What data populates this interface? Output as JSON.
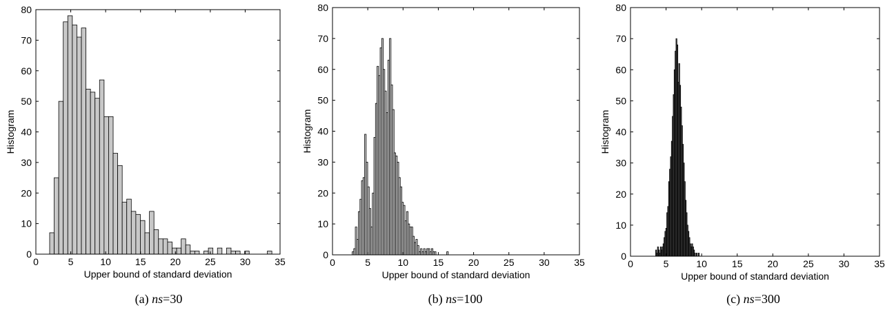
{
  "chart_data": [
    {
      "type": "bar",
      "panel_id": "a",
      "caption_prefix": "(a) ",
      "caption_var": "ns",
      "caption_value": "=30",
      "xlabel": "Upper bound of standard deviation",
      "ylabel": "Histogram",
      "xlim": [
        0,
        35
      ],
      "ylim": [
        0,
        80
      ],
      "xticks": [
        0,
        5,
        10,
        15,
        20,
        25,
        30,
        35
      ],
      "yticks": [
        0,
        10,
        20,
        30,
        40,
        50,
        60,
        70,
        80
      ],
      "bar_color": "#c8c8c8",
      "bin_width": 0.65,
      "bins": [
        [
          2.3,
          7
        ],
        [
          2.95,
          25
        ],
        [
          3.6,
          50
        ],
        [
          4.25,
          76
        ],
        [
          4.9,
          78
        ],
        [
          5.55,
          75
        ],
        [
          6.2,
          71
        ],
        [
          6.85,
          74
        ],
        [
          7.5,
          54
        ],
        [
          8.15,
          53
        ],
        [
          8.8,
          51
        ],
        [
          9.45,
          57
        ],
        [
          10.1,
          45
        ],
        [
          10.75,
          45
        ],
        [
          11.4,
          33
        ],
        [
          12.05,
          29
        ],
        [
          12.7,
          17
        ],
        [
          13.35,
          18
        ],
        [
          14.0,
          14
        ],
        [
          14.65,
          13
        ],
        [
          15.3,
          11
        ],
        [
          15.95,
          7
        ],
        [
          16.6,
          14
        ],
        [
          17.25,
          8
        ],
        [
          17.9,
          5
        ],
        [
          18.55,
          5
        ],
        [
          19.2,
          4
        ],
        [
          19.85,
          2
        ],
        [
          20.5,
          2
        ],
        [
          21.15,
          5
        ],
        [
          21.8,
          3
        ],
        [
          22.45,
          1
        ],
        [
          23.1,
          1
        ],
        [
          24.4,
          1
        ],
        [
          25.05,
          2
        ],
        [
          26.35,
          2
        ],
        [
          27.65,
          2
        ],
        [
          28.3,
          1
        ],
        [
          28.95,
          1
        ],
        [
          30.25,
          1
        ],
        [
          33.5,
          1
        ]
      ]
    },
    {
      "type": "bar",
      "panel_id": "b",
      "caption_prefix": "(b) ",
      "caption_var": "ns",
      "caption_value": "=100",
      "xlabel": "Upper bound of standard deviation",
      "ylabel": "Histogram",
      "xlim": [
        0,
        35
      ],
      "ylim": [
        0,
        80
      ],
      "xticks": [
        0,
        5,
        10,
        15,
        20,
        25,
        30,
        35
      ],
      "yticks": [
        0,
        10,
        20,
        30,
        40,
        50,
        60,
        70,
        80
      ],
      "bar_color": "#cfcfcf",
      "bin_width": 0.22,
      "bins": [
        [
          2.9,
          1
        ],
        [
          3.12,
          2
        ],
        [
          3.34,
          9
        ],
        [
          3.56,
          5
        ],
        [
          3.78,
          14
        ],
        [
          4.0,
          18
        ],
        [
          4.22,
          24
        ],
        [
          4.44,
          25
        ],
        [
          4.66,
          39
        ],
        [
          4.88,
          30
        ],
        [
          5.1,
          22
        ],
        [
          5.32,
          15
        ],
        [
          5.54,
          9
        ],
        [
          5.76,
          20
        ],
        [
          5.98,
          38
        ],
        [
          6.2,
          49
        ],
        [
          6.42,
          61
        ],
        [
          6.64,
          58
        ],
        [
          6.86,
          67
        ],
        [
          7.08,
          70
        ],
        [
          7.3,
          60
        ],
        [
          7.52,
          53
        ],
        [
          7.74,
          46
        ],
        [
          7.96,
          63
        ],
        [
          8.18,
          70
        ],
        [
          8.4,
          55
        ],
        [
          8.62,
          47
        ],
        [
          8.84,
          33
        ],
        [
          9.06,
          32
        ],
        [
          9.28,
          30
        ],
        [
          9.5,
          25
        ],
        [
          9.72,
          22
        ],
        [
          9.94,
          17
        ],
        [
          10.16,
          16
        ],
        [
          10.38,
          11
        ],
        [
          10.6,
          14
        ],
        [
          10.82,
          10
        ],
        [
          11.04,
          9
        ],
        [
          11.26,
          9
        ],
        [
          11.48,
          6
        ],
        [
          11.7,
          4
        ],
        [
          11.92,
          5
        ],
        [
          12.14,
          3
        ],
        [
          12.36,
          1
        ],
        [
          12.58,
          2
        ],
        [
          12.8,
          1
        ],
        [
          13.02,
          2
        ],
        [
          13.24,
          1
        ],
        [
          13.46,
          2
        ],
        [
          13.68,
          2
        ],
        [
          13.9,
          1
        ],
        [
          14.12,
          2
        ],
        [
          14.34,
          1
        ],
        [
          14.56,
          1
        ],
        [
          16.3,
          1
        ]
      ]
    },
    {
      "type": "bar",
      "panel_id": "c",
      "caption_prefix": "(c) ",
      "caption_var": "ns",
      "caption_value": "=300",
      "xlabel": "Upper bound of standard deviation",
      "ylabel": "Histogram",
      "xlim": [
        0,
        35
      ],
      "ylim": [
        0,
        80
      ],
      "xticks": [
        0,
        5,
        10,
        15,
        20,
        25,
        30,
        35
      ],
      "yticks": [
        0,
        10,
        20,
        30,
        40,
        50,
        60,
        70,
        80
      ],
      "bar_color": "#555555",
      "bin_width": 0.13,
      "bins": [
        [
          3.6,
          2
        ],
        [
          3.73,
          1
        ],
        [
          3.86,
          3
        ],
        [
          3.99,
          2
        ],
        [
          4.12,
          1
        ],
        [
          4.25,
          3
        ],
        [
          4.38,
          2
        ],
        [
          4.51,
          3
        ],
        [
          4.64,
          4
        ],
        [
          4.77,
          6
        ],
        [
          4.9,
          8
        ],
        [
          5.03,
          9
        ],
        [
          5.16,
          14
        ],
        [
          5.29,
          16
        ],
        [
          5.42,
          24
        ],
        [
          5.55,
          28
        ],
        [
          5.68,
          32
        ],
        [
          5.81,
          37
        ],
        [
          5.94,
          45
        ],
        [
          6.07,
          52
        ],
        [
          6.2,
          60
        ],
        [
          6.33,
          66
        ],
        [
          6.46,
          70
        ],
        [
          6.59,
          68
        ],
        [
          6.72,
          56
        ],
        [
          6.85,
          62
        ],
        [
          6.98,
          55
        ],
        [
          7.11,
          48
        ],
        [
          7.24,
          42
        ],
        [
          7.37,
          36
        ],
        [
          7.5,
          30
        ],
        [
          7.63,
          24
        ],
        [
          7.76,
          18
        ],
        [
          7.89,
          14
        ],
        [
          8.02,
          10
        ],
        [
          8.15,
          8
        ],
        [
          8.28,
          6
        ],
        [
          8.41,
          4
        ],
        [
          8.54,
          3
        ],
        [
          8.67,
          4
        ],
        [
          8.8,
          3
        ],
        [
          8.93,
          2
        ],
        [
          9.06,
          1
        ],
        [
          9.32,
          1
        ],
        [
          9.6,
          1
        ]
      ]
    }
  ]
}
